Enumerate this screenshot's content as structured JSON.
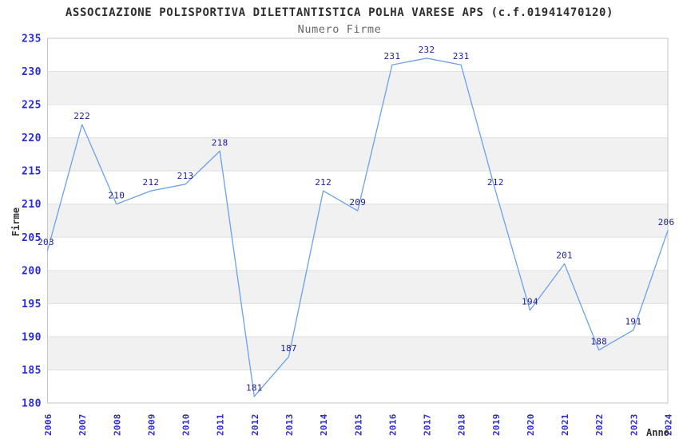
{
  "chart_data": {
    "type": "line",
    "title": "ASSOCIAZIONE POLISPORTIVA DILETTANTISTICA POLHA VARESE APS (c.f.01941470120)",
    "subtitle": "Numero Firme",
    "xlabel": "Anno",
    "ylabel": "Firme",
    "categories": [
      "2006",
      "2007",
      "2008",
      "2009",
      "2010",
      "2011",
      "2012",
      "2013",
      "2014",
      "2015",
      "2016",
      "2017",
      "2018",
      "2019",
      "2020",
      "2021",
      "2022",
      "2023",
      "2024"
    ],
    "values": [
      203,
      222,
      210,
      212,
      213,
      218,
      181,
      187,
      212,
      209,
      231,
      232,
      231,
      212,
      194,
      201,
      188,
      191,
      206
    ],
    "ylim": [
      180,
      235
    ],
    "ytick_step": 5,
    "legend_position": "none",
    "grid": "horizontal-bands",
    "colors": {
      "line": "#6aa1e8",
      "axis_tick_label": "#2b2bd0",
      "value_label": "#1c1c96",
      "band_fill": "#f1f1f1",
      "gridline": "#e0e0e0",
      "plot_border": "#c6c6c6",
      "title": "#2e2e2e",
      "subtitle": "#666666",
      "axis_title": "#333333",
      "background": "#ffffff"
    }
  }
}
